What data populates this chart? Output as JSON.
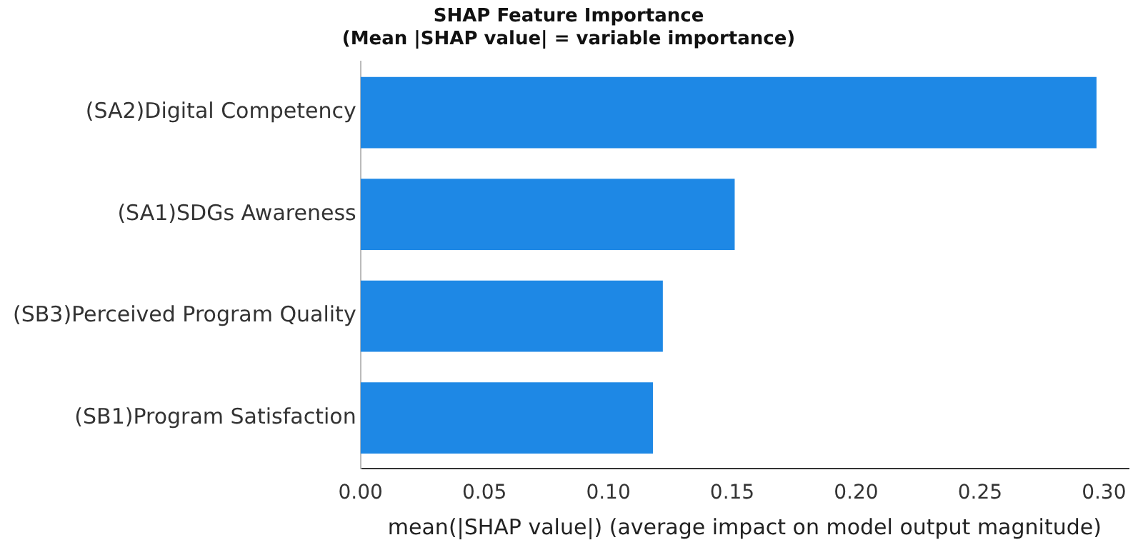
{
  "chart_data": {
    "type": "bar",
    "orientation": "horizontal",
    "title": "SHAP Feature Importance",
    "subtitle": "(Mean |SHAP value| = variable importance)",
    "xlabel": "mean(|SHAP value|) (average impact on model output magnitude)",
    "categories": [
      "(SA2)Digital Competency",
      "(SA1)SDGs Awareness",
      "(SB3)Perceived Program Quality",
      "(SB1)Program Satisfaction"
    ],
    "values": [
      0.297,
      0.151,
      0.122,
      0.118
    ],
    "color": "#1e88e5",
    "xlim": [
      0,
      0.31
    ],
    "xticks": [
      {
        "value": 0,
        "label": "0.00"
      },
      {
        "value": 0.05,
        "label": "0.05"
      },
      {
        "value": 0.1,
        "label": "0.10"
      },
      {
        "value": 0.15,
        "label": "0.15"
      },
      {
        "value": 0.2,
        "label": "0.20"
      },
      {
        "value": 0.25,
        "label": "0.25"
      },
      {
        "value": 0.3,
        "label": "0.30"
      }
    ],
    "grid": false,
    "legend": false
  }
}
